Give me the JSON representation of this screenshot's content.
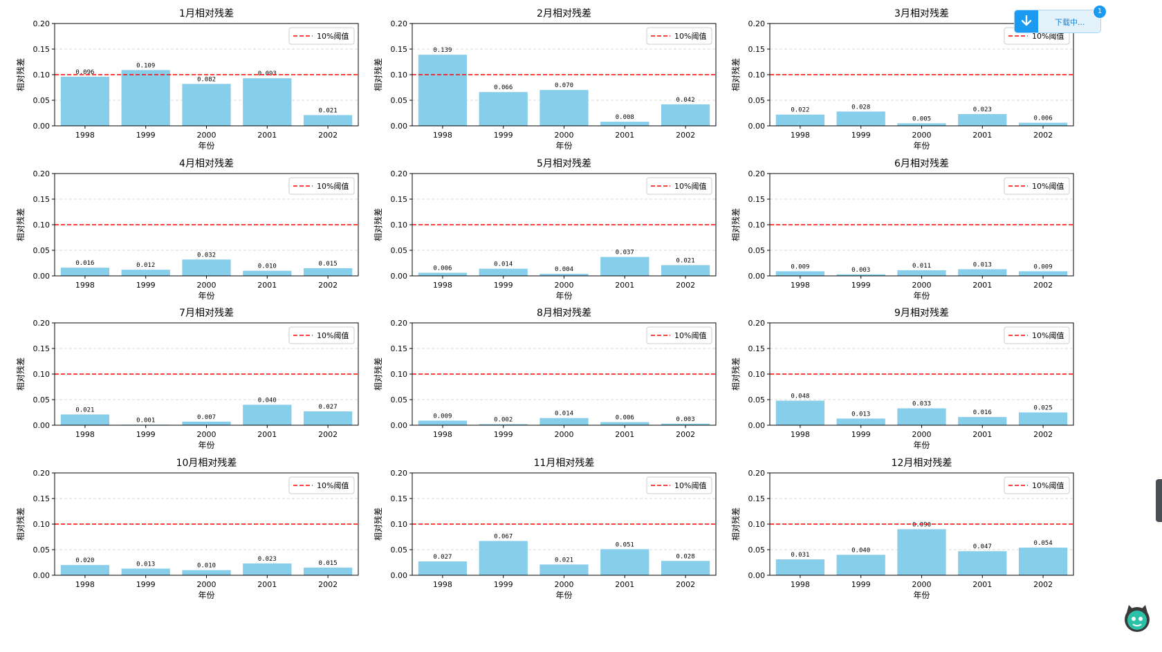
{
  "threshold_legend": "10%阈值",
  "colors": {
    "bar": "#87ceeb",
    "threshold": "#ff0000",
    "grid": "#cccccc"
  },
  "download": {
    "label": "下载中...",
    "badge": "1"
  },
  "chart_data": [
    {
      "type": "bar",
      "title": "1月相对残差",
      "xlabel": "年份",
      "ylabel": "相对残差",
      "categories": [
        "1998",
        "1999",
        "2000",
        "2001",
        "2002"
      ],
      "values": [
        0.096,
        0.109,
        0.082,
        0.093,
        0.021
      ],
      "labels": [
        "0.096",
        "0.109",
        "0.082",
        "0.093",
        "0.021"
      ],
      "threshold": 0.1,
      "ylim": [
        0,
        0.2
      ],
      "yticks": [
        "0.00",
        "0.05",
        "0.10",
        "0.15",
        "0.20"
      ],
      "legend": "upper right"
    },
    {
      "type": "bar",
      "title": "2月相对残差",
      "xlabel": "年份",
      "ylabel": "相对残差",
      "categories": [
        "1998",
        "1999",
        "2000",
        "2001",
        "2002"
      ],
      "values": [
        0.139,
        0.066,
        0.07,
        0.008,
        0.042
      ],
      "labels": [
        "0.139",
        "0.066",
        "0.070",
        "0.008",
        "0.042"
      ],
      "threshold": 0.1,
      "ylim": [
        0,
        0.2
      ],
      "yticks": [
        "0.00",
        "0.05",
        "0.10",
        "0.15",
        "0.20"
      ],
      "legend": "upper right"
    },
    {
      "type": "bar",
      "title": "3月相对残差",
      "xlabel": "年份",
      "ylabel": "相对残差",
      "categories": [
        "1998",
        "1999",
        "2000",
        "2001",
        "2002"
      ],
      "values": [
        0.022,
        0.028,
        0.005,
        0.023,
        0.006
      ],
      "labels": [
        "0.022",
        "0.028",
        "0.005",
        "0.023",
        "0.006"
      ],
      "threshold": 0.1,
      "ylim": [
        0,
        0.2
      ],
      "yticks": [
        "0.00",
        "0.05",
        "0.10",
        "0.15",
        "0.20"
      ],
      "legend": "upper right"
    },
    {
      "type": "bar",
      "title": "4月相对残差",
      "xlabel": "年份",
      "ylabel": "相对残差",
      "categories": [
        "1998",
        "1999",
        "2000",
        "2001",
        "2002"
      ],
      "values": [
        0.016,
        0.012,
        0.032,
        0.01,
        0.015
      ],
      "labels": [
        "0.016",
        "0.012",
        "0.032",
        "0.010",
        "0.015"
      ],
      "threshold": 0.1,
      "ylim": [
        0,
        0.2
      ],
      "yticks": [
        "0.00",
        "0.05",
        "0.10",
        "0.15",
        "0.20"
      ],
      "legend": "upper right"
    },
    {
      "type": "bar",
      "title": "5月相对残差",
      "xlabel": "年份",
      "ylabel": "相对残差",
      "categories": [
        "1998",
        "1999",
        "2000",
        "2001",
        "2002"
      ],
      "values": [
        0.006,
        0.014,
        0.004,
        0.037,
        0.021
      ],
      "labels": [
        "0.006",
        "0.014",
        "0.004",
        "0.037",
        "0.021"
      ],
      "threshold": 0.1,
      "ylim": [
        0,
        0.2
      ],
      "yticks": [
        "0.00",
        "0.05",
        "0.10",
        "0.15",
        "0.20"
      ],
      "legend": "upper right"
    },
    {
      "type": "bar",
      "title": "6月相对残差",
      "xlabel": "年份",
      "ylabel": "相对残差",
      "categories": [
        "1998",
        "1999",
        "2000",
        "2001",
        "2002"
      ],
      "values": [
        0.009,
        0.003,
        0.011,
        0.013,
        0.009
      ],
      "labels": [
        "0.009",
        "0.003",
        "0.011",
        "0.013",
        "0.009"
      ],
      "threshold": 0.1,
      "ylim": [
        0,
        0.2
      ],
      "yticks": [
        "0.00",
        "0.05",
        "0.10",
        "0.15",
        "0.20"
      ],
      "legend": "upper right"
    },
    {
      "type": "bar",
      "title": "7月相对残差",
      "xlabel": "年份",
      "ylabel": "相对残差",
      "categories": [
        "1998",
        "1999",
        "2000",
        "2001",
        "2002"
      ],
      "values": [
        0.021,
        0.001,
        0.007,
        0.04,
        0.027
      ],
      "labels": [
        "0.021",
        "0.001",
        "0.007",
        "0.040",
        "0.027"
      ],
      "threshold": 0.1,
      "ylim": [
        0,
        0.2
      ],
      "yticks": [
        "0.00",
        "0.05",
        "0.10",
        "0.15",
        "0.20"
      ],
      "legend": "upper right"
    },
    {
      "type": "bar",
      "title": "8月相对残差",
      "xlabel": "",
      "ylabel": "相对残差",
      "categories": [
        "1998",
        "1999",
        "2000",
        "2001",
        "2002"
      ],
      "values": [
        0.009,
        0.002,
        0.014,
        0.006,
        0.003
      ],
      "labels": [
        "0.009",
        "0.002",
        "0.014",
        "0.006",
        "0.003"
      ],
      "threshold": 0.1,
      "ylim": [
        0,
        0.2
      ],
      "yticks": [
        "0.00",
        "0.05",
        "0.10",
        "0.15",
        "0.20"
      ],
      "legend": "upper right"
    },
    {
      "type": "bar",
      "title": "9月相对残差",
      "xlabel": "年份",
      "ylabel": "相对残差",
      "categories": [
        "1998",
        "1999",
        "2000",
        "2001",
        "2002"
      ],
      "values": [
        0.048,
        0.013,
        0.033,
        0.016,
        0.025
      ],
      "labels": [
        "0.048",
        "0.013",
        "0.033",
        "0.016",
        "0.025"
      ],
      "threshold": 0.1,
      "ylim": [
        0,
        0.2
      ],
      "yticks": [
        "0.00",
        "0.05",
        "0.10",
        "0.15",
        "0.20"
      ],
      "legend": "upper right"
    },
    {
      "type": "bar",
      "title": "10月相对残差",
      "xlabel": "年份",
      "ylabel": "相对残差",
      "categories": [
        "1998",
        "1999",
        "2000",
        "2001",
        "2002"
      ],
      "values": [
        0.02,
        0.013,
        0.01,
        0.023,
        0.015
      ],
      "labels": [
        "0.020",
        "0.013",
        "0.010",
        "0.023",
        "0.015"
      ],
      "threshold": 0.1,
      "ylim": [
        0,
        0.2
      ],
      "yticks": [
        "0.00",
        "0.05",
        "0.10",
        "0.15",
        "0.20"
      ],
      "legend": "upper right"
    },
    {
      "type": "bar",
      "title": "11月相对残差",
      "xlabel": "年份",
      "ylabel": "相对残差",
      "categories": [
        "1998",
        "1999",
        "2000",
        "2001",
        "2002"
      ],
      "values": [
        0.027,
        0.067,
        0.021,
        0.051,
        0.028
      ],
      "labels": [
        "0.027",
        "0.067",
        "0.021",
        "0.051",
        "0.028"
      ],
      "threshold": 0.1,
      "ylim": [
        0,
        0.2
      ],
      "yticks": [
        "0.00",
        "0.05",
        "0.10",
        "0.15",
        "0.20"
      ],
      "legend": "upper right"
    },
    {
      "type": "bar",
      "title": "12月相对残差",
      "xlabel": "年份",
      "ylabel": "相对残差",
      "categories": [
        "1998",
        "1999",
        "2000",
        "2001",
        "2002"
      ],
      "values": [
        0.031,
        0.04,
        0.09,
        0.047,
        0.054
      ],
      "labels": [
        "0.031",
        "0.040",
        "0.090",
        "0.047",
        "0.054"
      ],
      "threshold": 0.1,
      "ylim": [
        0,
        0.2
      ],
      "yticks": [
        "0.00",
        "0.05",
        "0.10",
        "0.15",
        "0.20"
      ],
      "legend": "upper right"
    }
  ]
}
